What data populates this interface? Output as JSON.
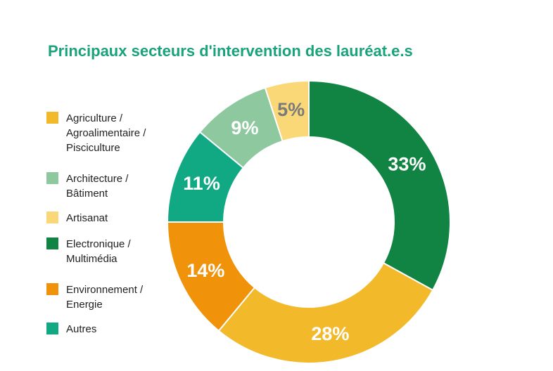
{
  "chart_data": {
    "type": "pie",
    "variant": "donut",
    "title": "Principaux secteurs d'intervention des lauréat.e.s",
    "unit": "%",
    "legend_position": "left",
    "slices": [
      {
        "label": "Electronique /\nMultimédia",
        "value": 33,
        "color": "#118443",
        "label_color": "#ffffff"
      },
      {
        "label": "Agriculture /\nAgroalimentaire /\nPisciculture",
        "value": 28,
        "color": "#f2b92a",
        "label_color": "#ffffff"
      },
      {
        "label": "Environnement /\nEnergie",
        "value": 14,
        "color": "#f0930a",
        "label_color": "#ffffff"
      },
      {
        "label": "Autres",
        "value": 11,
        "color": "#11a884",
        "label_color": "#ffffff"
      },
      {
        "label": "Architecture /\nBâtiment",
        "value": 9,
        "color": "#8ec89f",
        "label_color": "#ffffff"
      },
      {
        "label": "Artisanat",
        "value": 5,
        "color": "#fbd877",
        "label_color": "#7a7a7a"
      }
    ],
    "legend_order": [
      "Agriculture /\nAgroalimentaire /\nPisciculture",
      "Architecture /\nBâtiment",
      "Artisanat",
      "Electronique /\nMultimédia",
      "Environnement /\nEnergie",
      "Autres"
    ]
  }
}
